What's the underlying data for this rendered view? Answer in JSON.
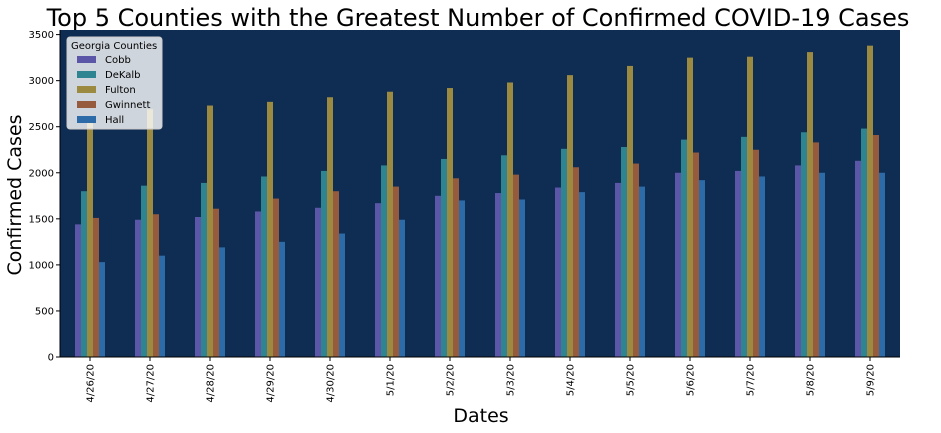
{
  "chart_data": {
    "type": "bar",
    "title": "Top 5 Counties with the Greatest Number of Confirmed COVID-19 Cases",
    "xlabel": "Dates",
    "ylabel": "Confirmed Cases",
    "ylim": [
      0,
      3550
    ],
    "yticks": [
      0,
      500,
      1000,
      1500,
      2000,
      2500,
      3000,
      3500
    ],
    "grid": false,
    "background": "#0f2d52",
    "legend": {
      "title": "Georgia Counties",
      "placement": "top-left"
    },
    "categories": [
      "4/26/20",
      "4/27/20",
      "4/28/20",
      "4/29/20",
      "4/30/20",
      "5/1/20",
      "5/2/20",
      "5/3/20",
      "5/4/20",
      "5/5/20",
      "5/6/20",
      "5/7/20",
      "5/8/20",
      "5/9/20"
    ],
    "series": [
      {
        "name": "Cobb",
        "color": "#5b56a8",
        "values": [
          1440,
          1490,
          1520,
          1580,
          1620,
          1670,
          1750,
          1780,
          1840,
          1890,
          2000,
          2020,
          2080,
          2130
        ]
      },
      {
        "name": "DeKalb",
        "color": "#2e8490",
        "values": [
          1800,
          1860,
          1890,
          1960,
          2020,
          2080,
          2150,
          2190,
          2260,
          2280,
          2360,
          2390,
          2440,
          2480
        ]
      },
      {
        "name": "Fulton",
        "color": "#9b8a40",
        "values": [
          2590,
          2690,
          2730,
          2770,
          2820,
          2880,
          2920,
          2980,
          3060,
          3160,
          3250,
          3260,
          3310,
          3380
        ]
      },
      {
        "name": "Gwinnett",
        "color": "#965a3c",
        "values": [
          1510,
          1550,
          1610,
          1720,
          1800,
          1850,
          1940,
          1980,
          2060,
          2100,
          2220,
          2250,
          2330,
          2410
        ]
      },
      {
        "name": "Hall",
        "color": "#2c6ba8",
        "values": [
          1030,
          1100,
          1190,
          1250,
          1340,
          1490,
          1700,
          1710,
          1790,
          1850,
          1920,
          1960,
          2000,
          2000
        ]
      }
    ]
  }
}
